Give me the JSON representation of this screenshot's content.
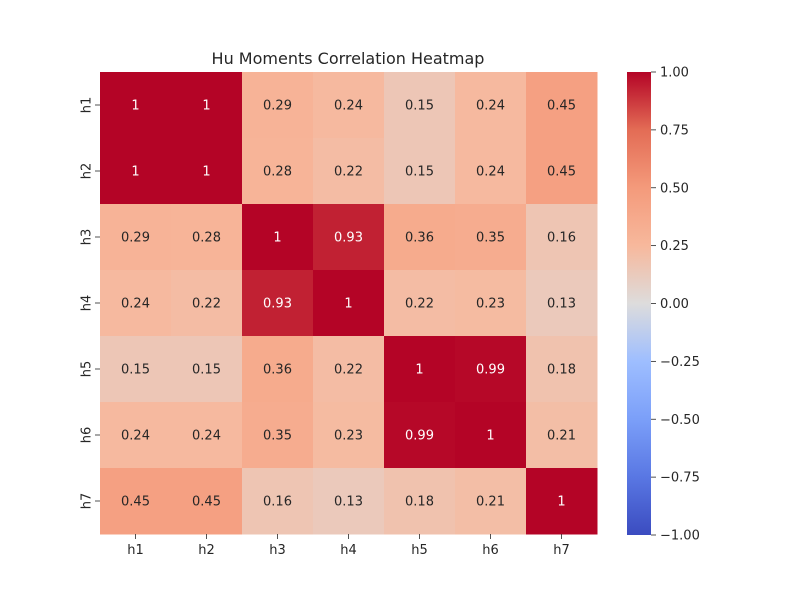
{
  "chart_data": {
    "type": "heatmap",
    "title": "Hu Moments Correlation Heatmap",
    "xlabel": "",
    "ylabel": "",
    "x_categories": [
      "h1",
      "h2",
      "h3",
      "h4",
      "h5",
      "h6",
      "h7"
    ],
    "y_categories": [
      "h1",
      "h2",
      "h3",
      "h4",
      "h5",
      "h6",
      "h7"
    ],
    "values": [
      [
        1,
        1,
        0.29,
        0.24,
        0.15,
        0.24,
        0.45
      ],
      [
        1,
        1,
        0.28,
        0.22,
        0.15,
        0.24,
        0.45
      ],
      [
        0.29,
        0.28,
        1,
        0.93,
        0.36,
        0.35,
        0.16
      ],
      [
        0.24,
        0.22,
        0.93,
        1,
        0.22,
        0.23,
        0.13
      ],
      [
        0.15,
        0.15,
        0.36,
        0.22,
        1,
        0.99,
        0.18
      ],
      [
        0.24,
        0.24,
        0.35,
        0.23,
        0.99,
        1,
        0.21
      ],
      [
        0.45,
        0.45,
        0.16,
        0.13,
        0.18,
        0.21,
        1
      ]
    ],
    "value_labels": [
      [
        "1",
        "1",
        "0.29",
        "0.24",
        "0.15",
        "0.24",
        "0.45"
      ],
      [
        "1",
        "1",
        "0.28",
        "0.22",
        "0.15",
        "0.24",
        "0.45"
      ],
      [
        "0.29",
        "0.28",
        "1",
        "0.93",
        "0.36",
        "0.35",
        "0.16"
      ],
      [
        "0.24",
        "0.22",
        "0.93",
        "1",
        "0.22",
        "0.23",
        "0.13"
      ],
      [
        "0.15",
        "0.15",
        "0.36",
        "0.22",
        "1",
        "0.99",
        "0.18"
      ],
      [
        "0.24",
        "0.24",
        "0.35",
        "0.23",
        "0.99",
        "1",
        "0.21"
      ],
      [
        "0.45",
        "0.45",
        "0.16",
        "0.13",
        "0.18",
        "0.21",
        "1"
      ]
    ],
    "colormap": "coolwarm",
    "vmin": -1.0,
    "vmax": 1.0,
    "colorbar_ticks": [
      1.0,
      0.75,
      0.5,
      0.25,
      0.0,
      -0.25,
      -0.5,
      -0.75,
      -1.0
    ],
    "colorbar_tick_labels": [
      "1.00",
      "0.75",
      "0.50",
      "0.25",
      "0.00",
      "−0.25",
      "−0.50",
      "−0.75",
      "−1.00"
    ],
    "colorbar_placement": "right",
    "grid": false
  }
}
